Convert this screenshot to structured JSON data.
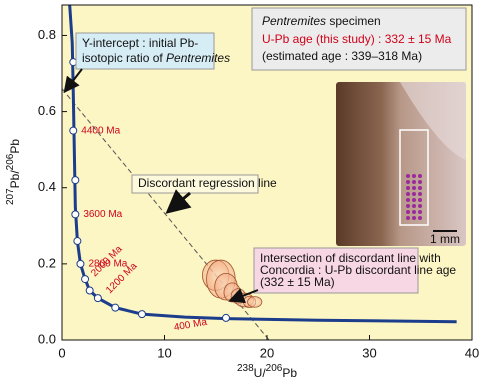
{
  "chart_data": {
    "type": "concordia",
    "xlabel": [
      "238",
      "U/",
      "206",
      "Pb"
    ],
    "ylabel": [
      "207",
      "Pb/",
      "206",
      "Pb"
    ],
    "xlim": [
      0,
      40
    ],
    "ylim": [
      0,
      0.88
    ],
    "xticks": [
      0,
      10,
      20,
      30,
      40
    ],
    "yticks": [
      {
        "value": 0,
        "label": "0.0"
      },
      0.2,
      0.4,
      0.6,
      0.8
    ],
    "background": "#fcf5c4",
    "concordia": {
      "color": "#1c3d8c",
      "x": [
        0.75,
        1.0,
        1.1,
        1.2,
        1.3,
        1.5,
        1.8,
        2.25,
        2.7,
        3.5,
        5.2,
        7.8,
        12,
        16,
        25,
        38.5
      ],
      "y": [
        0.88,
        0.78,
        0.65,
        0.5,
        0.35,
        0.26,
        0.2,
        0.16,
        0.13,
        0.11,
        0.085,
        0.068,
        0.06,
        0.056,
        0.052,
        0.048
      ]
    },
    "concordia_points": {
      "x": [
        1.1,
        1.1,
        1.3,
        1.3,
        1.5,
        1.8,
        2.25,
        2.7,
        3.5,
        5.2,
        7.8,
        16
      ],
      "y": [
        0.73,
        0.55,
        0.42,
        0.33,
        0.26,
        0.2,
        0.16,
        0.13,
        0.11,
        0.085,
        0.068,
        0.058
      ],
      "labels": [
        null,
        "4400 Ma",
        null,
        "3600 Ma",
        null,
        "2800 Ma",
        "2000 Ma",
        null,
        "1200 Ma",
        null,
        null,
        "400 Ma"
      ]
    },
    "discordia": {
      "x": [
        0,
        20.2
      ],
      "y": [
        0.66,
        0
      ]
    },
    "ellipses": {
      "x": [
        15,
        15.5,
        16,
        16.6,
        17.2,
        17.8,
        18.3,
        18.8
      ],
      "y": [
        0.17,
        0.16,
        0.14,
        0.125,
        0.115,
        0.105,
        0.1,
        0.1
      ],
      "x_err": [
        1.3,
        1.4,
        1.1,
        0.8,
        0.7,
        0.9,
        0.6,
        0.7
      ],
      "y_err": [
        0.04,
        0.05,
        0.035,
        0.025,
        0.02,
        0.018,
        0.015,
        0.014
      ]
    },
    "y_intercept_note": [
      "Y-intercept : initial Pb-",
      "isotopic ratio of ",
      "Pentremites"
    ],
    "discordia_note": "Discordant regression line",
    "intersection_note": [
      "Intersection of discordant line with",
      "Concordia : U-Pb discordant line age",
      "(332 ± 15 Ma)"
    ],
    "info_box": [
      "Pentremites",
      " specimen",
      "U-Pb age (this study) : 332 ± 15 Ma",
      "(estimated age : 339–318 Ma)"
    ],
    "scale_label": "1 mm"
  }
}
